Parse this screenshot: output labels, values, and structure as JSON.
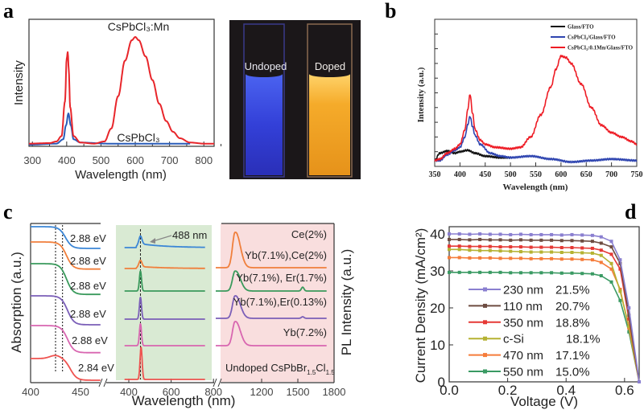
{
  "chart_data": [
    {
      "panel": "a",
      "type": "line",
      "xlabel": "Wavelength (nm)",
      "ylabel": "Intensity",
      "xlim": [
        290,
        830
      ],
      "ylim": [
        0,
        1.16
      ],
      "xticks": [
        300,
        400,
        500,
        600,
        700,
        800
      ],
      "annotations": [
        "CsPbCl₃:Mn",
        "CsPbCl₃"
      ],
      "series": [
        {
          "name": "CsPbCl₃:Mn",
          "color": "#e8262b",
          "x": [
            290,
            350,
            370,
            385,
            395,
            400,
            403,
            406,
            410,
            420,
            440,
            480,
            510,
            530,
            550,
            570,
            590,
            600,
            610,
            630,
            650,
            670,
            690,
            710,
            730,
            760,
            800,
            830
          ],
          "y": [
            0.01,
            0.015,
            0.03,
            0.08,
            0.4,
            0.8,
            0.86,
            0.7,
            0.35,
            0.08,
            0.02,
            0.01,
            0.03,
            0.15,
            0.45,
            0.78,
            0.97,
            1.0,
            0.97,
            0.82,
            0.6,
            0.38,
            0.22,
            0.12,
            0.06,
            0.02,
            0.01,
            0.01
          ]
        },
        {
          "name": "CsPbCl₃",
          "color": "#2a5cb8",
          "x": [
            290,
            370,
            390,
            398,
            405,
            412,
            420,
            440,
            520,
            760
          ],
          "y": [
            0.0,
            0.01,
            0.05,
            0.18,
            0.29,
            0.18,
            0.05,
            0.02,
            0.01,
            0.01
          ]
        }
      ]
    },
    {
      "panel": "b",
      "type": "line",
      "xlabel": "Wavelength (nm)",
      "ylabel": "Intensity (a.u.)",
      "xlim": [
        350,
        750
      ],
      "ylim": [
        0,
        10
      ],
      "xticks": [
        350,
        400,
        450,
        500,
        550,
        600,
        650,
        700,
        750
      ],
      "legend_position": "top-right",
      "series": [
        {
          "name": "Glass/FTO",
          "color": "#111111",
          "x": [
            350,
            360,
            375,
            390,
            400,
            415,
            430,
            450,
            480,
            500
          ],
          "y": [
            0.4,
            0.9,
            1.05,
            0.9,
            1.0,
            1.1,
            0.9,
            0.7,
            0.6,
            0.6
          ]
        },
        {
          "name": "CsPbCl₃/Glass/FTO",
          "color": "#2f45b0",
          "x": [
            350,
            360,
            375,
            390,
            400,
            410,
            415,
            420,
            425,
            430,
            440,
            460,
            480,
            500,
            540,
            580,
            620,
            660,
            700,
            750
          ],
          "y": [
            0.4,
            0.4,
            0.8,
            1.1,
            1.3,
            2.0,
            2.8,
            3.4,
            2.7,
            2.1,
            1.5,
            0.9,
            0.7,
            0.6,
            0.7,
            0.5,
            0.3,
            0.4,
            0.5,
            0.4
          ]
        },
        {
          "name": "CsPbCl₃:0.1Mn/Glass/FTO",
          "color": "#ee1c25",
          "x": [
            350,
            360,
            375,
            390,
            400,
            410,
            415,
            420,
            425,
            430,
            440,
            450,
            470,
            500,
            520,
            540,
            560,
            580,
            590,
            600,
            610,
            620,
            640,
            660,
            680,
            700,
            720,
            740,
            750
          ],
          "y": [
            0.4,
            0.5,
            0.9,
            1.2,
            1.5,
            2.5,
            3.8,
            4.9,
            3.6,
            2.5,
            1.8,
            1.5,
            1.3,
            1.2,
            1.3,
            2.0,
            3.5,
            5.4,
            6.6,
            7.5,
            7.4,
            7.0,
            5.6,
            4.0,
            2.8,
            2.3,
            2.0,
            1.7,
            1.5
          ]
        }
      ]
    },
    {
      "panel": "c",
      "type": "line",
      "xlabel": "Wavelength (nm)",
      "ylabel_left": "Absorption (a.u.)",
      "ylabel_right": "PL Intensity (a.u.)",
      "segments": [
        {
          "name": "absorption",
          "xlim": [
            400,
            470
          ],
          "xticks": [
            400,
            450
          ]
        },
        {
          "name": "visible-pl",
          "xlim": [
            330,
            800
          ],
          "xticks": [
            400,
            600,
            800
          ],
          "background": "#d9ead3"
        },
        {
          "name": "nir-pl",
          "xlim": [
            800,
            1800
          ],
          "xticks": [
            1200,
            1500,
            1800
          ],
          "background": "#f9dede"
        }
      ],
      "annotation_488": "488 nm",
      "dashed_lines_nm": [
        425,
        432
      ],
      "traces": [
        {
          "color": "#3b86d6",
          "energy_label": "2.88 eV",
          "abs_edge_nm": 435,
          "abs_step": 0.6,
          "pl_peak_nm": 455,
          "pl_amp": 0.25,
          "pl_broad": 0.12,
          "nir_label": "",
          "nir_amp": 0,
          "er_amp": 0
        },
        {
          "color": "#f07f3c",
          "energy_label": "2.88 eV",
          "abs_edge_nm": 436,
          "abs_step": 0.75,
          "pl_peak_nm": 455,
          "pl_amp": 0.2,
          "pl_broad": 0.06,
          "nir_label": "Ce(2%)",
          "nir_amp": 1.1,
          "er_amp": 0
        },
        {
          "color": "#3a9a5c",
          "energy_label": "2.88 eV",
          "abs_edge_nm": 436,
          "abs_step": 0.85,
          "pl_peak_nm": 455,
          "pl_amp": 0.62,
          "pl_broad": 0,
          "nir_label": "Yb(7.1%),Ce(2%)",
          "nir_amp": 0.62,
          "er_amp": 0.12
        },
        {
          "color": "#7b5fb8",
          "energy_label": "2.88 eV",
          "abs_edge_nm": 437,
          "abs_step": 0.8,
          "pl_peak_nm": 455,
          "pl_amp": 0.68,
          "pl_broad": 0,
          "nir_label": "Yb(7.1%), Er(1.7%)",
          "nir_amp": 0.7,
          "er_amp": 0.05
        },
        {
          "color": "#d866b0",
          "energy_label": "2.88 eV",
          "abs_edge_nm": 437,
          "abs_step": 0.75,
          "pl_peak_nm": 455,
          "pl_amp": 0.68,
          "pl_broad": 0,
          "nir_label": "Yb(7.1%),Er(0.13%)",
          "nir_amp": 0.75,
          "er_amp": 0
        },
        {
          "color": "#ef5350",
          "energy_label": "2.84 eV",
          "abs_edge_nm": 440,
          "abs_step": 0.6,
          "pl_peak_nm": 458,
          "pl_amp": 1.0,
          "pl_broad": 0,
          "nir_label": "Yb(7.2%)",
          "nir_amp": 0,
          "er_amp": 0
        }
      ],
      "undoped_label": {
        "prefix": "Undoped CsPbBr",
        "sub1": "1.5",
        "mid": "Cl",
        "sub2": "1.5"
      }
    },
    {
      "panel": "d",
      "type": "line",
      "xlabel": "Voltage (V)",
      "ylabel": "Current Density (mA/cm²)",
      "xlim": [
        0,
        0.65
      ],
      "ylim": [
        0,
        40
      ],
      "xticks": [
        "0.0",
        "0.2",
        "0.4",
        "0.6"
      ],
      "yticks": [
        "0",
        "10",
        "20",
        "30",
        "40"
      ],
      "x": [
        0,
        0.035,
        0.07,
        0.105,
        0.14,
        0.175,
        0.21,
        0.245,
        0.28,
        0.315,
        0.35,
        0.385,
        0.42,
        0.455,
        0.49,
        0.52,
        0.555,
        0.585,
        0.615,
        0.65
      ],
      "series": [
        {
          "name": "230 nm",
          "efficiency": "21.5%",
          "color": "#8a7fd0",
          "y": [
            40,
            40,
            39.9,
            40,
            39.9,
            39.9,
            39.8,
            39.9,
            39.8,
            39.8,
            39.8,
            39.7,
            39.8,
            39.7,
            39.6,
            39.2,
            38,
            33,
            20,
            0
          ]
        },
        {
          "name": "110 nm",
          "efficiency": "20.7%",
          "color": "#6d4c41",
          "y": [
            38.5,
            38.5,
            38.4,
            38.5,
            38.4,
            38.4,
            38.3,
            38.4,
            38.3,
            38.3,
            38.3,
            38.2,
            38.2,
            38.1,
            38,
            37.5,
            36.5,
            32,
            18,
            0
          ]
        },
        {
          "name": "350 nm",
          "efficiency": "18.8%",
          "color": "#e53935",
          "y": [
            36.7,
            36.7,
            36.6,
            36.6,
            36.6,
            36.5,
            36.5,
            36.5,
            36.4,
            36.4,
            36.4,
            36.3,
            36.3,
            36.2,
            36.1,
            35.6,
            34.5,
            30.5,
            17,
            0
          ]
        },
        {
          "name": "c-Si",
          "efficiency": "18.1%",
          "color": "#b5b232",
          "y": [
            35.8,
            35.8,
            35.6,
            35.5,
            35.5,
            35.4,
            35.3,
            35.2,
            35.1,
            35.1,
            35.1,
            35.0,
            35.0,
            34.9,
            34.8,
            34.2,
            32,
            24.5,
            15,
            0
          ]
        },
        {
          "name": "470 nm",
          "efficiency": "17.1%",
          "color": "#f57c3a",
          "y": [
            33.6,
            33.6,
            33.5,
            33.5,
            33.5,
            33.4,
            33.4,
            33.4,
            33.3,
            33.3,
            33.3,
            33.2,
            33.2,
            33.1,
            33,
            32.3,
            30.5,
            25,
            14.5,
            0
          ]
        },
        {
          "name": "550 nm",
          "efficiency": "15.0%",
          "color": "#3a9a63",
          "y": [
            29.6,
            29.6,
            29.6,
            29.6,
            29.6,
            29.6,
            29.5,
            29.5,
            29.5,
            29.5,
            29.5,
            29.4,
            29.4,
            29.3,
            29.2,
            28.7,
            27,
            22,
            13.5,
            0
          ]
        }
      ]
    }
  ],
  "panel_labels": [
    "a",
    "b",
    "c",
    "d"
  ],
  "photo": {
    "undoped_label": "Undoped",
    "doped_label": "Doped"
  }
}
